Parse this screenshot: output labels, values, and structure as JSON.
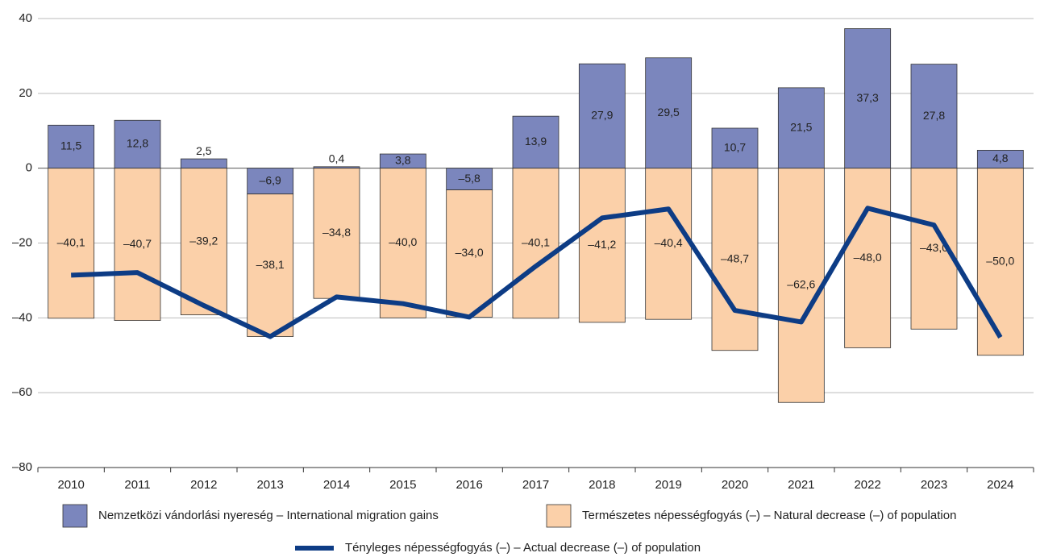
{
  "chart_data": {
    "type": "bar",
    "categories": [
      "2010",
      "2011",
      "2012",
      "2013",
      "2014",
      "2015",
      "2016",
      "2017",
      "2018",
      "2019",
      "2020",
      "2021",
      "2022",
      "2023",
      "2024"
    ],
    "series": [
      {
        "name": "Nemzetközi vándorlási nyereség – International migration gains",
        "color": "#7b86bd",
        "values": [
          11.5,
          12.8,
          2.5,
          -6.9,
          0.4,
          3.8,
          -5.8,
          13.9,
          27.9,
          29.5,
          10.7,
          21.5,
          37.3,
          27.8,
          4.8
        ],
        "value_labels": [
          "11,5",
          "12,8",
          "2,5",
          "–6,9",
          "0,4",
          "3,8",
          "–5,8",
          "13,9",
          "27,9",
          "29,5",
          "10,7",
          "21,5",
          "37,3",
          "27,8",
          "4,8"
        ]
      },
      {
        "name": "Természetes népességfogyás (–) – Natural decrease (–) of population",
        "color": "#fbd0a9",
        "values": [
          -40.1,
          -40.7,
          -39.2,
          -38.1,
          -34.8,
          -40.0,
          -34.0,
          -40.1,
          -41.2,
          -40.4,
          -48.7,
          -62.6,
          -48.0,
          -43.0,
          -50.0
        ],
        "value_labels": [
          "–40,1",
          "–40,7",
          "–39,2",
          "–38,1",
          "–34,8",
          "–40,0",
          "–34,0",
          "–40,1",
          "–41,2",
          "–40,4",
          "–48,7",
          "–62,6",
          "–48,0",
          "–43,0",
          "–50,0"
        ]
      },
      {
        "name": "Tényleges népességfogyás (–) – Actual decrease (–) of population",
        "color": "#0d3c85",
        "type": "line",
        "values": [
          -28.6,
          -27.9,
          -36.7,
          -45.0,
          -34.4,
          -36.2,
          -39.8,
          -26.2,
          -13.3,
          -10.9,
          -38.0,
          -41.1,
          -10.7,
          -15.2,
          -45.2
        ]
      }
    ],
    "ylim": [
      -80,
      40
    ],
    "yticks": [
      {
        "value": -80,
        "label": "–80"
      },
      {
        "value": -60,
        "label": "–60"
      },
      {
        "value": -40,
        "label": "–40"
      },
      {
        "value": -20,
        "label": "–20"
      },
      0,
      20,
      40
    ],
    "grid": true
  }
}
